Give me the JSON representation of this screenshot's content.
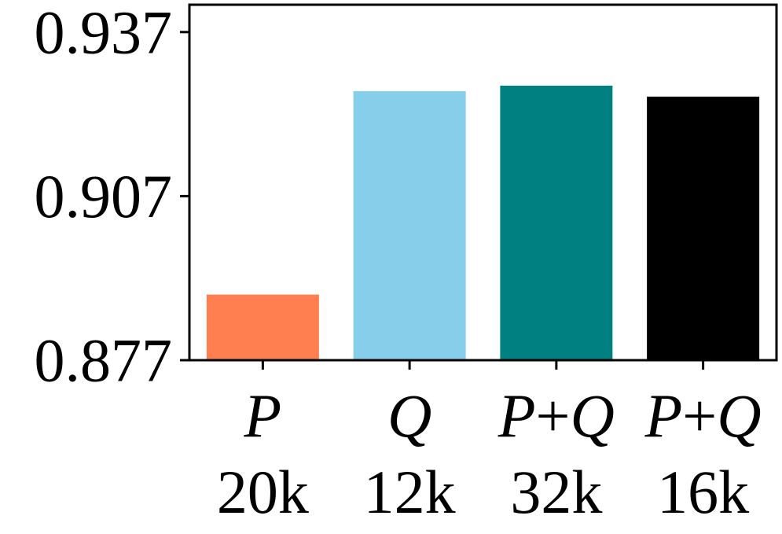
{
  "chart_data": {
    "type": "bar",
    "categories": [
      "P+20k",
      "Q+12k",
      "P+Q+32k",
      "P+Q+16k"
    ],
    "category_labels": [
      {
        "line1": [
          "P"
        ],
        "line2": "20k"
      },
      {
        "line1": [
          "Q"
        ],
        "line2": "12k"
      },
      {
        "line1": [
          "P",
          "+",
          "Q"
        ],
        "line2": "32k"
      },
      {
        "line1": [
          "P",
          "+",
          "Q"
        ],
        "line2": "16k"
      }
    ],
    "values": [
      0.889,
      0.9262,
      0.9272,
      0.9252
    ],
    "colors": [
      "#FF7F50",
      "#87CEEB",
      "#008080",
      "#000000"
    ],
    "title": "",
    "xlabel": "",
    "ylabel": "",
    "ylim": [
      0.877,
      0.942
    ],
    "yticks": [
      0.877,
      0.907,
      0.937
    ],
    "ytick_labels": [
      "0.877",
      "0.907",
      "0.937"
    ],
    "grid": false,
    "legend": "none"
  }
}
